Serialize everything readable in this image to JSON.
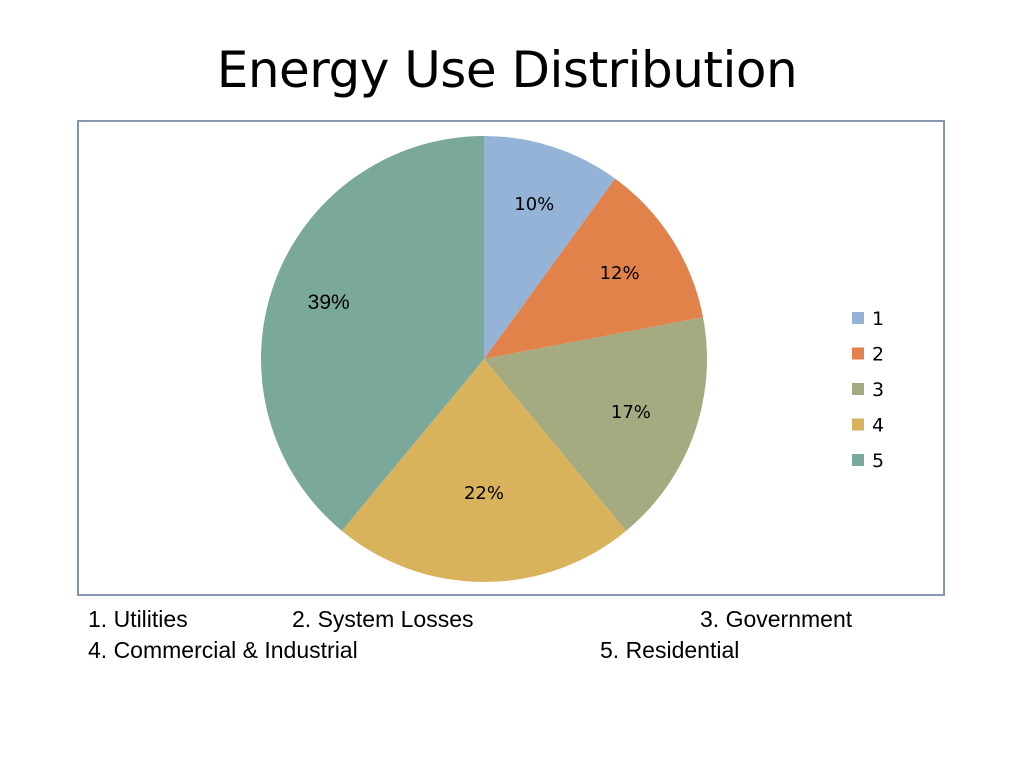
{
  "title": "Energy Use Distribution",
  "chart_data": {
    "type": "pie",
    "categories": [
      "1",
      "2",
      "3",
      "4",
      "5"
    ],
    "values": [
      10,
      12,
      17,
      22,
      39
    ],
    "value_labels": [
      "10%",
      "12%",
      "17%",
      "22%",
      "39%"
    ],
    "colors": [
      "#95b3d7",
      "#e0824a",
      "#a4ab80",
      "#d9b25c",
      "#7aa89b"
    ],
    "legend_placement": "right",
    "start_angle_deg": 0,
    "direction": "clockwise"
  },
  "legend": {
    "items": [
      "1",
      "2",
      "3",
      "4",
      "5"
    ]
  },
  "footnotes": {
    "item1": "1.  Utilities",
    "item2": "2.  System Losses",
    "item3": "3.  Government",
    "item4": "4.  Commercial & Industrial",
    "item5": "5.  Residential"
  }
}
